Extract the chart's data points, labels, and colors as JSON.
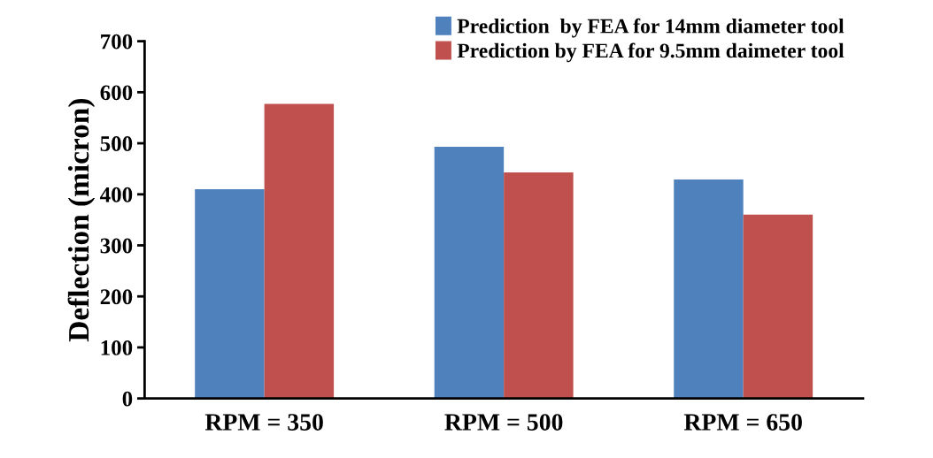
{
  "chart_data": {
    "type": "bar",
    "ylabel": "Deflection (micron)",
    "categories": [
      "RPM = 350",
      "RPM = 500",
      "RPM = 650"
    ],
    "series": [
      {
        "name": "Prediction  by FEA for 14mm diameter tool",
        "color": "#4f81bd",
        "values": [
          410,
          493,
          429
        ]
      },
      {
        "name": "Prediction by FEA for 9.5mm daimeter tool",
        "color": "#c0504d",
        "values": [
          577,
          443,
          360
        ]
      }
    ],
    "ylim": [
      0,
      700
    ],
    "yticks": [
      0,
      100,
      200,
      300,
      400,
      500,
      600,
      700
    ],
    "grid": false,
    "legend": "top right"
  }
}
